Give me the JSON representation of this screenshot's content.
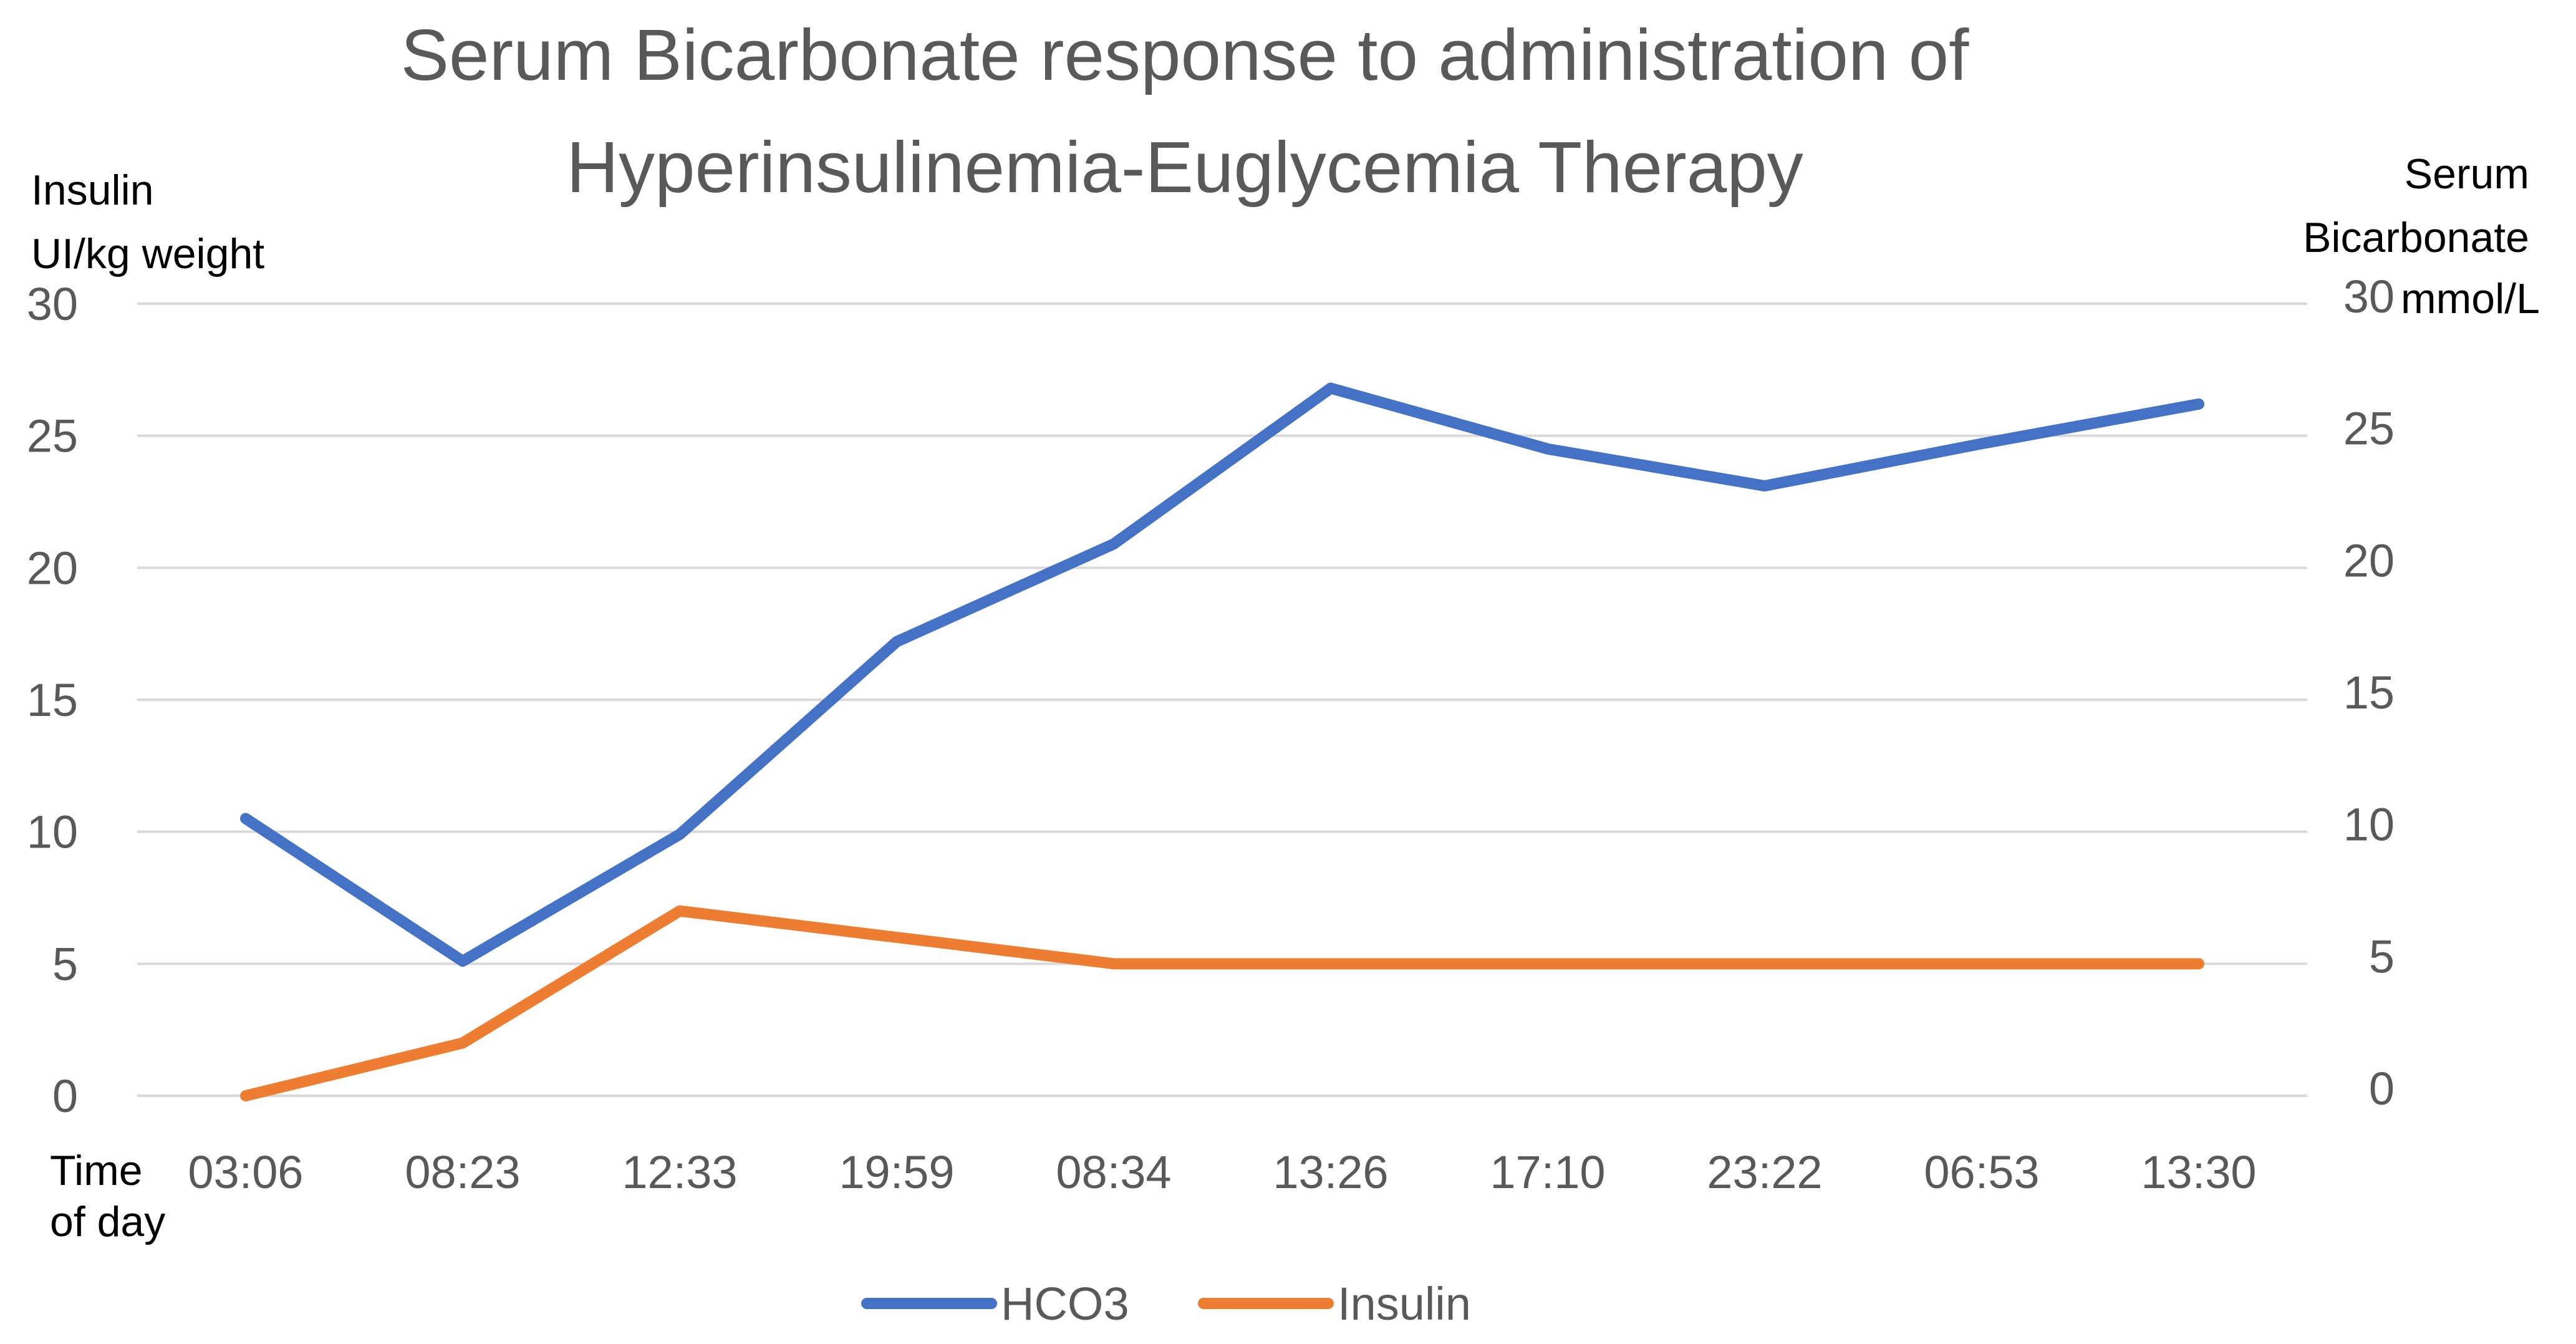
{
  "chart_data": {
    "type": "line",
    "title_lines": [
      "Serum Bicarbonate response to administration of",
      "Hyperinsulinemia-Euglycemia Therapy"
    ],
    "left_axis": {
      "label_lines": [
        "Insulin",
        "UI/kg weight"
      ],
      "ticks": [
        0,
        5,
        10,
        15,
        20,
        25,
        30
      ],
      "ylim": [
        0,
        30
      ]
    },
    "right_axis": {
      "label_lines": [
        "Serum",
        "Bicarbonate"
      ],
      "unit": "mmol/L",
      "ticks": [
        0,
        5,
        10,
        15,
        20,
        25,
        30
      ],
      "ylim": [
        0,
        30
      ]
    },
    "x_axis": {
      "label_lines": [
        "Time",
        "of day"
      ]
    },
    "categories": [
      "03:06",
      "08:23",
      "12:33",
      "19:59",
      "08:34",
      "13:26",
      "17:10",
      "23:22",
      "06:53",
      "13:30"
    ],
    "series": [
      {
        "name": "HCO3",
        "axis": "right",
        "color": "#4472c4",
        "values": [
          10.5,
          5.1,
          9.9,
          17.2,
          20.9,
          26.8,
          24.5,
          23.1,
          24.7,
          26.2
        ]
      },
      {
        "name": "Insulin",
        "axis": "left",
        "color": "#ed7d31",
        "values": [
          0,
          2,
          7,
          6,
          5,
          5,
          5,
          5,
          5,
          5
        ]
      }
    ],
    "grid": true,
    "legend_position": "bottom"
  }
}
